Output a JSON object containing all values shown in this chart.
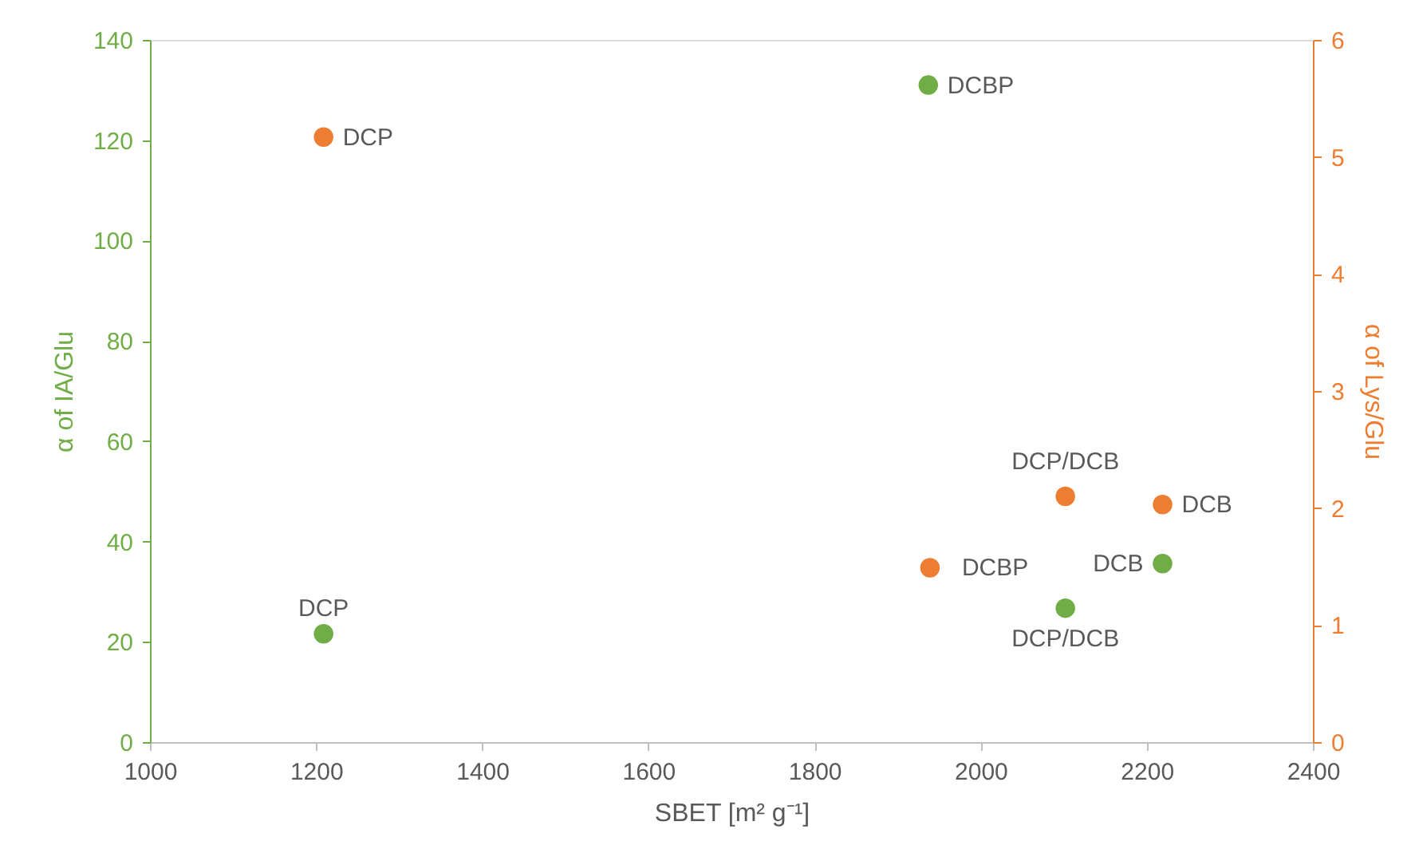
{
  "chart_data": {
    "type": "scatter",
    "xlabel": "SBET [m² g⁻¹]",
    "ylabel": "α of IA/Glu",
    "y2label": "α of Lys/Glu",
    "series": [
      {
        "x": [
          1209,
          1937,
          2102,
          2219
        ],
        "values": [
          21.6,
          131,
          26.7,
          35.6
        ],
        "color": "#70ad47"
      },
      {
        "x": [
          1209,
          1939,
          2102,
          2219
        ],
        "values": [
          5.17,
          1.49,
          2.1,
          2.03
        ],
        "color": "#ed7d31",
        "axis": "y2"
      }
    ],
    "annotations": [
      {
        "text": "DCP",
        "x": 1209,
        "y": 21.6
      },
      {
        "text": "DCBP",
        "x": 1937,
        "y": 131
      },
      {
        "text": "DCP/DCB",
        "x": 2102,
        "y": 26.7
      },
      {
        "text": "DCB",
        "x": 2219,
        "y": 35.6
      },
      {
        "text": "DCP",
        "x": 1209,
        "y": 120.6
      },
      {
        "text": "DCBP",
        "x": 1939,
        "y": 34.8
      },
      {
        "text": "DCP/DCB",
        "x": 2102,
        "y": 49
      },
      {
        "text": "DCB",
        "x": 2219,
        "y": 47.4
      }
    ],
    "xlim": [
      1000,
      2400
    ],
    "xticks": [
      1000,
      1200,
      1400,
      1600,
      1800,
      2000,
      2200,
      2400
    ],
    "ylim": [
      0,
      140
    ],
    "yticks": [
      0,
      20,
      40,
      60,
      80,
      100,
      120,
      140
    ],
    "y2lim": [
      0,
      6
    ],
    "y2ticks": [
      0,
      1,
      2,
      3,
      4,
      5,
      6
    ],
    "marker": "circle",
    "grid": false
  }
}
